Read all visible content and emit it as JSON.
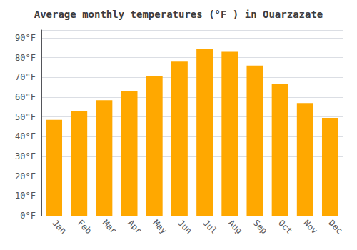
{
  "chart_data": {
    "type": "bar",
    "title": "Average monthly temperatures (°F ) in Ouarzazate",
    "categories": [
      "Jan",
      "Feb",
      "Mar",
      "Apr",
      "May",
      "Jun",
      "Jul",
      "Aug",
      "Sep",
      "Oct",
      "Nov",
      "Dec"
    ],
    "values": [
      48.5,
      53.0,
      58.5,
      63.0,
      70.5,
      78.0,
      84.5,
      83.0,
      76.0,
      66.5,
      57.0,
      49.5
    ],
    "color": "#FFA800",
    "ylim": [
      0,
      94
    ],
    "yticks": [
      {
        "value": 0,
        "label": "0°F"
      },
      {
        "value": 10,
        "label": "10°F"
      },
      {
        "value": 20,
        "label": "20°F"
      },
      {
        "value": 30,
        "label": "30°F"
      },
      {
        "value": 40,
        "label": "40°F"
      },
      {
        "value": 50,
        "label": "50°F"
      },
      {
        "value": 60,
        "label": "60°F"
      },
      {
        "value": 70,
        "label": "70°F"
      },
      {
        "value": 80,
        "label": "80°F"
      },
      {
        "value": 90,
        "label": "90°F"
      }
    ],
    "grid": true
  }
}
